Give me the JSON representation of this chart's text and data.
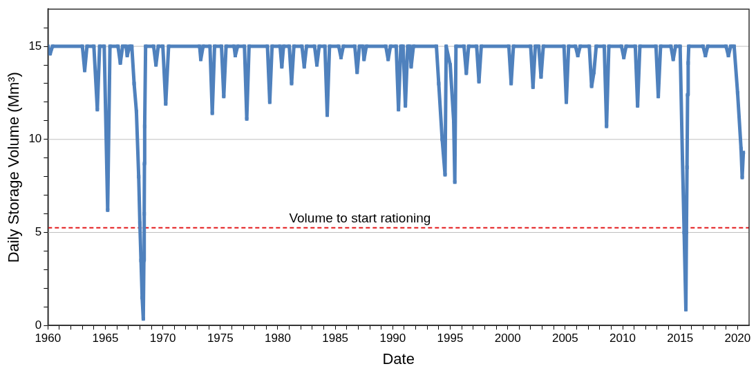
{
  "chart_data": {
    "type": "line",
    "xlabel": "Date",
    "ylabel": "Daily Storage Volume (Mm³)",
    "marker": "square",
    "grid": "y",
    "xlim": [
      1960,
      2021
    ],
    "ylim": [
      0,
      17
    ],
    "xticks": [
      1960,
      {
        "value": 1961,
        "label": null
      },
      {
        "value": 1962,
        "label": null
      },
      {
        "value": 1963,
        "label": null
      },
      {
        "value": 1964,
        "label": null
      },
      1965,
      {
        "value": 1966,
        "label": null
      },
      {
        "value": 1967,
        "label": null
      },
      {
        "value": 1968,
        "label": null
      },
      {
        "value": 1969,
        "label": null
      },
      1970,
      {
        "value": 1971,
        "label": null
      },
      {
        "value": 1972,
        "label": null
      },
      {
        "value": 1973,
        "label": null
      },
      {
        "value": 1974,
        "label": null
      },
      1975,
      {
        "value": 1976,
        "label": null
      },
      {
        "value": 1977,
        "label": null
      },
      {
        "value": 1978,
        "label": null
      },
      {
        "value": 1979,
        "label": null
      },
      1980,
      {
        "value": 1981,
        "label": null
      },
      {
        "value": 1982,
        "label": null
      },
      {
        "value": 1983,
        "label": null
      },
      {
        "value": 1984,
        "label": null
      },
      1985,
      {
        "value": 1986,
        "label": null
      },
      {
        "value": 1987,
        "label": null
      },
      {
        "value": 1988,
        "label": null
      },
      {
        "value": 1989,
        "label": null
      },
      1990,
      {
        "value": 1991,
        "label": null
      },
      {
        "value": 1992,
        "label": null
      },
      {
        "value": 1993,
        "label": null
      },
      {
        "value": 1994,
        "label": null
      },
      1995,
      {
        "value": 1996,
        "label": null
      },
      {
        "value": 1997,
        "label": null
      },
      {
        "value": 1998,
        "label": null
      },
      {
        "value": 1999,
        "label": null
      },
      2000,
      {
        "value": 2001,
        "label": null
      },
      {
        "value": 2002,
        "label": null
      },
      {
        "value": 2003,
        "label": null
      },
      {
        "value": 2004,
        "label": null
      },
      2005,
      {
        "value": 2006,
        "label": null
      },
      {
        "value": 2007,
        "label": null
      },
      {
        "value": 2008,
        "label": null
      },
      {
        "value": 2009,
        "label": null
      },
      2010,
      {
        "value": 2011,
        "label": null
      },
      {
        "value": 2012,
        "label": null
      },
      {
        "value": 2013,
        "label": null
      },
      {
        "value": 2014,
        "label": null
      },
      2015,
      {
        "value": 2016,
        "label": null
      },
      {
        "value": 2017,
        "label": null
      },
      {
        "value": 2018,
        "label": null
      },
      {
        "value": 2019,
        "label": null
      },
      2020
    ],
    "yticks": [
      0,
      {
        "value": 1,
        "label": null
      },
      {
        "value": 2,
        "label": null
      },
      {
        "value": 3,
        "label": null
      },
      {
        "value": 4,
        "label": null
      },
      5,
      {
        "value": 6,
        "label": null
      },
      {
        "value": 7,
        "label": null
      },
      {
        "value": 8,
        "label": null
      },
      {
        "value": 9,
        "label": null
      },
      10,
      {
        "value": 11,
        "label": null
      },
      {
        "value": 12,
        "label": null
      },
      {
        "value": 13,
        "label": null
      },
      {
        "value": 14,
        "label": null
      },
      15,
      {
        "value": 16,
        "label": null
      }
    ],
    "ref_lines": [
      {
        "axis": "y",
        "value": 5.25,
        "label": "Volume to start rationing",
        "color": "#e31a1c",
        "line_style": "dashed"
      }
    ],
    "series": [
      {
        "color": "#4f81bd",
        "x": [
          1960.0,
          1960.2,
          1960.4,
          1963.0,
          1963.2,
          1963.4,
          1964.0,
          1964.3,
          1964.5,
          1964.9,
          1965.2,
          1965.4,
          1966.1,
          1966.3,
          1966.5,
          1966.8,
          1966.9,
          1967.1,
          1967.3,
          1967.5,
          1967.7,
          1967.9,
          1968.0,
          1968.1,
          1968.2,
          1968.3,
          1968.35,
          1968.38,
          1968.4,
          1968.42,
          1968.5,
          1969.2,
          1969.4,
          1969.6,
          1970.0,
          1970.25,
          1970.5,
          1973.2,
          1973.3,
          1973.5,
          1974.1,
          1974.3,
          1974.5,
          1975.1,
          1975.3,
          1975.5,
          1976.2,
          1976.3,
          1976.5,
          1977.1,
          1977.3,
          1977.5,
          1979.1,
          1979.3,
          1979.5,
          1980.2,
          1980.35,
          1980.5,
          1981.0,
          1981.2,
          1981.4,
          1982.1,
          1982.3,
          1982.5,
          1983.2,
          1983.4,
          1983.6,
          1984.1,
          1984.3,
          1984.5,
          1985.3,
          1985.5,
          1985.7,
          1986.7,
          1986.9,
          1987.1,
          1987.4,
          1987.5,
          1987.7,
          1989.4,
          1989.6,
          1989.8,
          1990.3,
          1990.5,
          1990.7,
          1990.9,
          1991.1,
          1991.3,
          1991.5,
          1991.6,
          1991.8,
          1993.8,
          1994.0,
          1994.3,
          1994.55,
          1994.65,
          1995.0,
          1995.3,
          1995.4,
          1995.5,
          1996.2,
          1996.4,
          1996.6,
          1997.3,
          1997.5,
          1997.7,
          2000.1,
          2000.3,
          2000.5,
          2002.0,
          2002.2,
          2002.4,
          2002.7,
          2002.9,
          2003.1,
          2004.9,
          2005.1,
          2005.3,
          2005.9,
          2006.1,
          2006.3,
          2007.1,
          2007.3,
          2007.5,
          2007.7,
          2008.4,
          2008.6,
          2008.8,
          2009.9,
          2010.1,
          2010.3,
          2011.1,
          2011.3,
          2011.5,
          2012.9,
          2013.1,
          2013.3,
          2014.2,
          2014.4,
          2014.6,
          2015.0,
          2015.2,
          2015.35,
          2015.5,
          2015.55,
          2015.6,
          2015.65,
          2015.7,
          2015.75,
          2017.0,
          2017.2,
          2017.4,
          2019.0,
          2019.2,
          2019.4,
          2019.7,
          2020.0,
          2020.3,
          2020.4,
          2020.5
        ],
        "values": [
          15,
          14.6,
          15,
          15,
          13.7,
          15,
          15,
          11.6,
          15,
          15,
          6.2,
          15,
          15,
          14.1,
          15,
          15,
          14.5,
          15,
          15,
          13.0,
          11.5,
          8.0,
          5.5,
          3.5,
          1.5,
          0.35,
          3.5,
          6.0,
          8.7,
          10.7,
          15,
          15,
          14.0,
          15,
          15,
          11.9,
          15,
          15,
          14.3,
          15,
          15,
          11.4,
          15,
          15,
          12.3,
          15,
          15,
          14.5,
          15,
          15,
          11.1,
          15,
          15,
          12.0,
          15,
          15,
          13.9,
          15,
          15,
          13.0,
          15,
          15,
          13.9,
          15,
          15,
          14.0,
          15,
          15,
          11.3,
          15,
          15,
          14.4,
          15,
          15,
          13.6,
          15,
          15,
          14.3,
          15,
          15,
          14.3,
          15,
          15,
          11.6,
          15,
          15,
          11.8,
          15,
          15,
          13.9,
          15,
          15,
          13.0,
          10.0,
          8.1,
          15,
          14.0,
          11.0,
          7.7,
          15,
          15,
          13.55,
          15,
          15,
          13.1,
          15,
          15,
          13.0,
          15,
          15,
          12.8,
          15,
          15,
          13.35,
          15,
          15,
          12.0,
          15,
          15,
          14.5,
          15,
          15,
          12.85,
          13.6,
          15,
          15,
          10.7,
          15,
          15,
          14.4,
          15,
          15,
          11.8,
          15,
          15,
          12.3,
          15,
          15,
          14.3,
          15,
          15,
          9.0,
          5.0,
          0.85,
          5.0,
          8.5,
          12.4,
          14.1,
          15,
          15,
          14.5,
          15,
          15,
          14.5,
          15,
          15,
          12.5,
          9.5,
          7.95,
          9.3
        ]
      }
    ]
  }
}
